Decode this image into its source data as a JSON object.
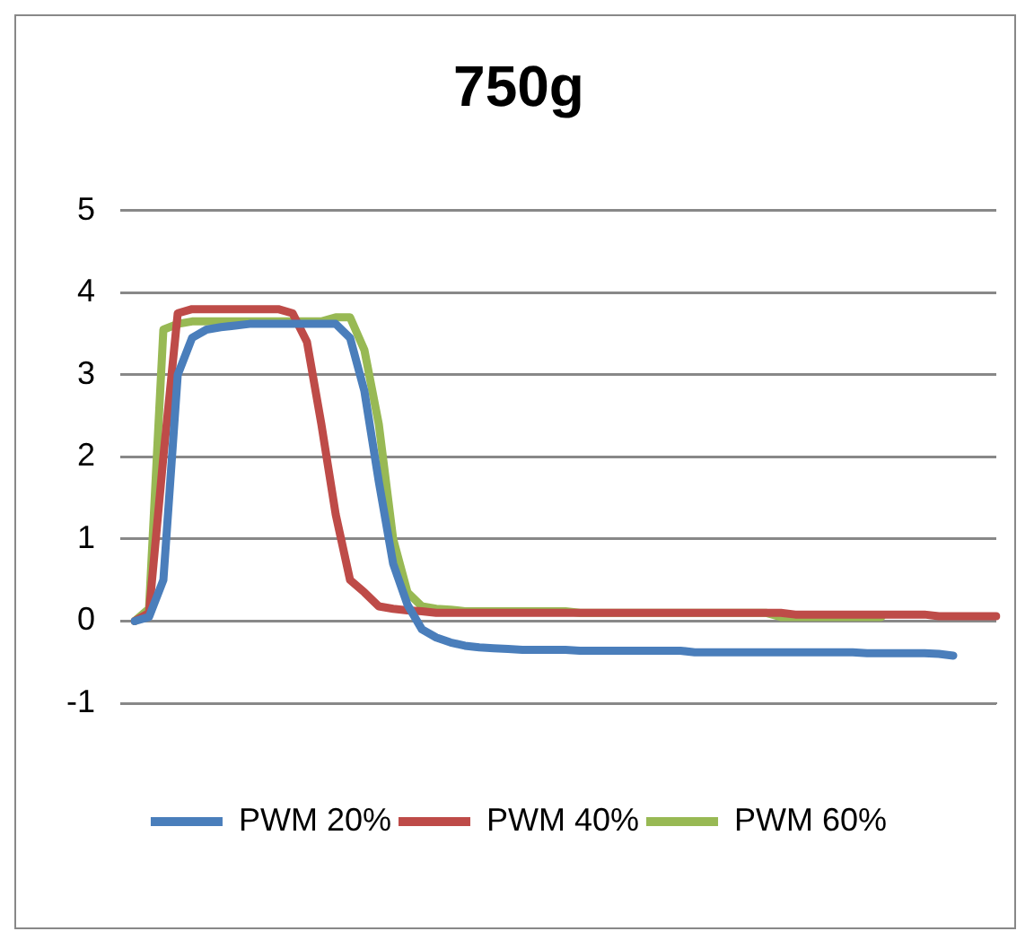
{
  "chart_data": {
    "type": "line",
    "title": "750g",
    "categories": [
      null,
      null,
      null,
      null,
      null,
      null,
      null,
      null,
      null,
      null,
      null,
      null,
      null,
      null,
      null,
      null,
      null,
      null,
      null,
      null,
      null,
      null,
      null,
      null,
      null,
      null,
      null,
      null,
      null,
      null,
      null,
      null,
      null,
      null,
      null,
      null,
      null,
      null,
      null,
      null,
      null,
      null,
      null,
      null,
      null,
      null,
      null,
      null,
      null,
      null,
      null,
      null,
      null,
      null,
      null,
      null,
      null,
      null,
      null,
      null,
      null
    ],
    "ylim": [
      -1,
      5
    ],
    "yticks": [
      -1,
      0,
      1,
      2,
      3,
      4,
      5
    ],
    "grid": "y",
    "legend": "bottom",
    "marker": "none",
    "line_style": "solid",
    "tick_labels": "y",
    "series": [
      {
        "name": "PWM 20%",
        "color": "#4a7ebb",
        "values": [
          0,
          0.05,
          0.5,
          3.0,
          3.45,
          3.55,
          3.58,
          3.6,
          3.62,
          3.62,
          3.62,
          3.62,
          3.62,
          3.62,
          3.62,
          3.45,
          2.8,
          1.7,
          0.7,
          0.2,
          -0.1,
          -0.2,
          -0.26,
          -0.3,
          -0.32,
          -0.33,
          -0.34,
          -0.35,
          -0.35,
          -0.35,
          -0.35,
          -0.36,
          -0.36,
          -0.36,
          -0.36,
          -0.36,
          -0.36,
          -0.36,
          -0.36,
          -0.38,
          -0.38,
          -0.38,
          -0.38,
          -0.38,
          -0.38,
          -0.38,
          -0.38,
          -0.38,
          -0.38,
          -0.38,
          -0.38,
          -0.39,
          -0.39,
          -0.39,
          -0.39,
          -0.39,
          -0.4,
          -0.42,
          null,
          null,
          null
        ]
      },
      {
        "name": "PWM 40%",
        "color": "#be4b48",
        "values": [
          0,
          0.1,
          2.0,
          3.75,
          3.8,
          3.8,
          3.8,
          3.8,
          3.8,
          3.8,
          3.8,
          3.75,
          3.4,
          2.4,
          1.3,
          0.5,
          0.35,
          0.18,
          0.15,
          0.13,
          0.12,
          0.1,
          0.1,
          0.1,
          0.1,
          0.1,
          0.1,
          0.1,
          0.1,
          0.1,
          0.1,
          0.1,
          0.1,
          0.1,
          0.1,
          0.1,
          0.1,
          0.1,
          0.1,
          0.1,
          0.1,
          0.1,
          0.1,
          0.1,
          0.1,
          0.1,
          0.08,
          0.08,
          0.08,
          0.08,
          0.08,
          0.08,
          0.08,
          0.08,
          0.08,
          0.08,
          0.06,
          0.06,
          0.06,
          0.06,
          0.06
        ]
      },
      {
        "name": "PWM 60%",
        "color": "#98b954",
        "values": [
          0,
          0.15,
          3.55,
          3.62,
          3.65,
          3.65,
          3.65,
          3.65,
          3.65,
          3.65,
          3.65,
          3.65,
          3.65,
          3.65,
          3.7,
          3.7,
          3.3,
          2.4,
          1.0,
          0.35,
          0.18,
          0.15,
          0.14,
          0.12,
          0.12,
          0.12,
          0.12,
          0.12,
          0.12,
          0.12,
          0.12,
          0.1,
          0.1,
          0.1,
          0.1,
          0.1,
          0.1,
          0.1,
          0.1,
          0.1,
          0.1,
          0.1,
          0.1,
          0.1,
          0.1,
          0.05,
          0.05,
          0.05,
          0.05,
          0.05,
          0.05,
          0.05,
          0.05,
          null,
          null,
          null,
          null,
          null,
          null,
          null,
          null
        ]
      }
    ]
  }
}
